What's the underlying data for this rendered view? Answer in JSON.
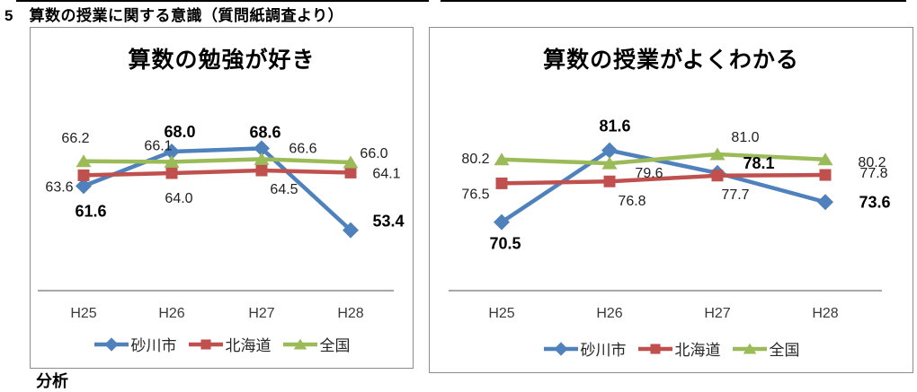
{
  "page": {
    "title": "5　算数の授業に関する意識（質問紙調査より）",
    "bottom_cut_text": "分析"
  },
  "colors": {
    "sunagawa_blue": "#4F81BD",
    "hokkaido_red": "#C0504D",
    "national_green": "#9BBB59",
    "axis_gray": "#8c8c8c"
  },
  "chart_data": [
    {
      "type": "line",
      "title": "算数の勉強が好き",
      "categories": [
        "H25",
        "H26",
        "H27",
        "H28"
      ],
      "series": [
        {
          "name": "砂川市",
          "marker": "diamond",
          "color": "#4F81BD",
          "emphasis": true,
          "values": [
            61.6,
            68.0,
            68.6,
            53.4
          ]
        },
        {
          "name": "北海道",
          "marker": "square",
          "color": "#C0504D",
          "emphasis": false,
          "values": [
            63.6,
            64.0,
            64.5,
            64.1
          ]
        },
        {
          "name": "全国",
          "marker": "triangle",
          "color": "#9BBB59",
          "emphasis": false,
          "values": [
            66.2,
            66.1,
            66.6,
            66.0
          ]
        }
      ],
      "xlabel": "",
      "ylabel": "",
      "ylim": [
        43.5,
        73.5
      ],
      "grid": false,
      "y_axis_visible": false,
      "legend_position": "bottom",
      "data_labels_shown": true
    },
    {
      "type": "line",
      "title": "算数の授業がよくわかる",
      "categories": [
        "H25",
        "H26",
        "H27",
        "H28"
      ],
      "series": [
        {
          "name": "砂川市",
          "marker": "diamond",
          "color": "#4F81BD",
          "emphasis": true,
          "values": [
            70.5,
            81.6,
            78.1,
            73.6
          ]
        },
        {
          "name": "北海道",
          "marker": "square",
          "color": "#C0504D",
          "emphasis": false,
          "values": [
            76.5,
            76.8,
            77.7,
            77.8
          ]
        },
        {
          "name": "全国",
          "marker": "triangle",
          "color": "#9BBB59",
          "emphasis": false,
          "values": [
            80.2,
            79.6,
            81.0,
            80.2
          ]
        }
      ],
      "xlabel": "",
      "ylabel": "",
      "ylim": [
        61,
        86
      ],
      "grid": false,
      "y_axis_visible": false,
      "legend_position": "bottom",
      "data_labels_shown": true
    }
  ]
}
